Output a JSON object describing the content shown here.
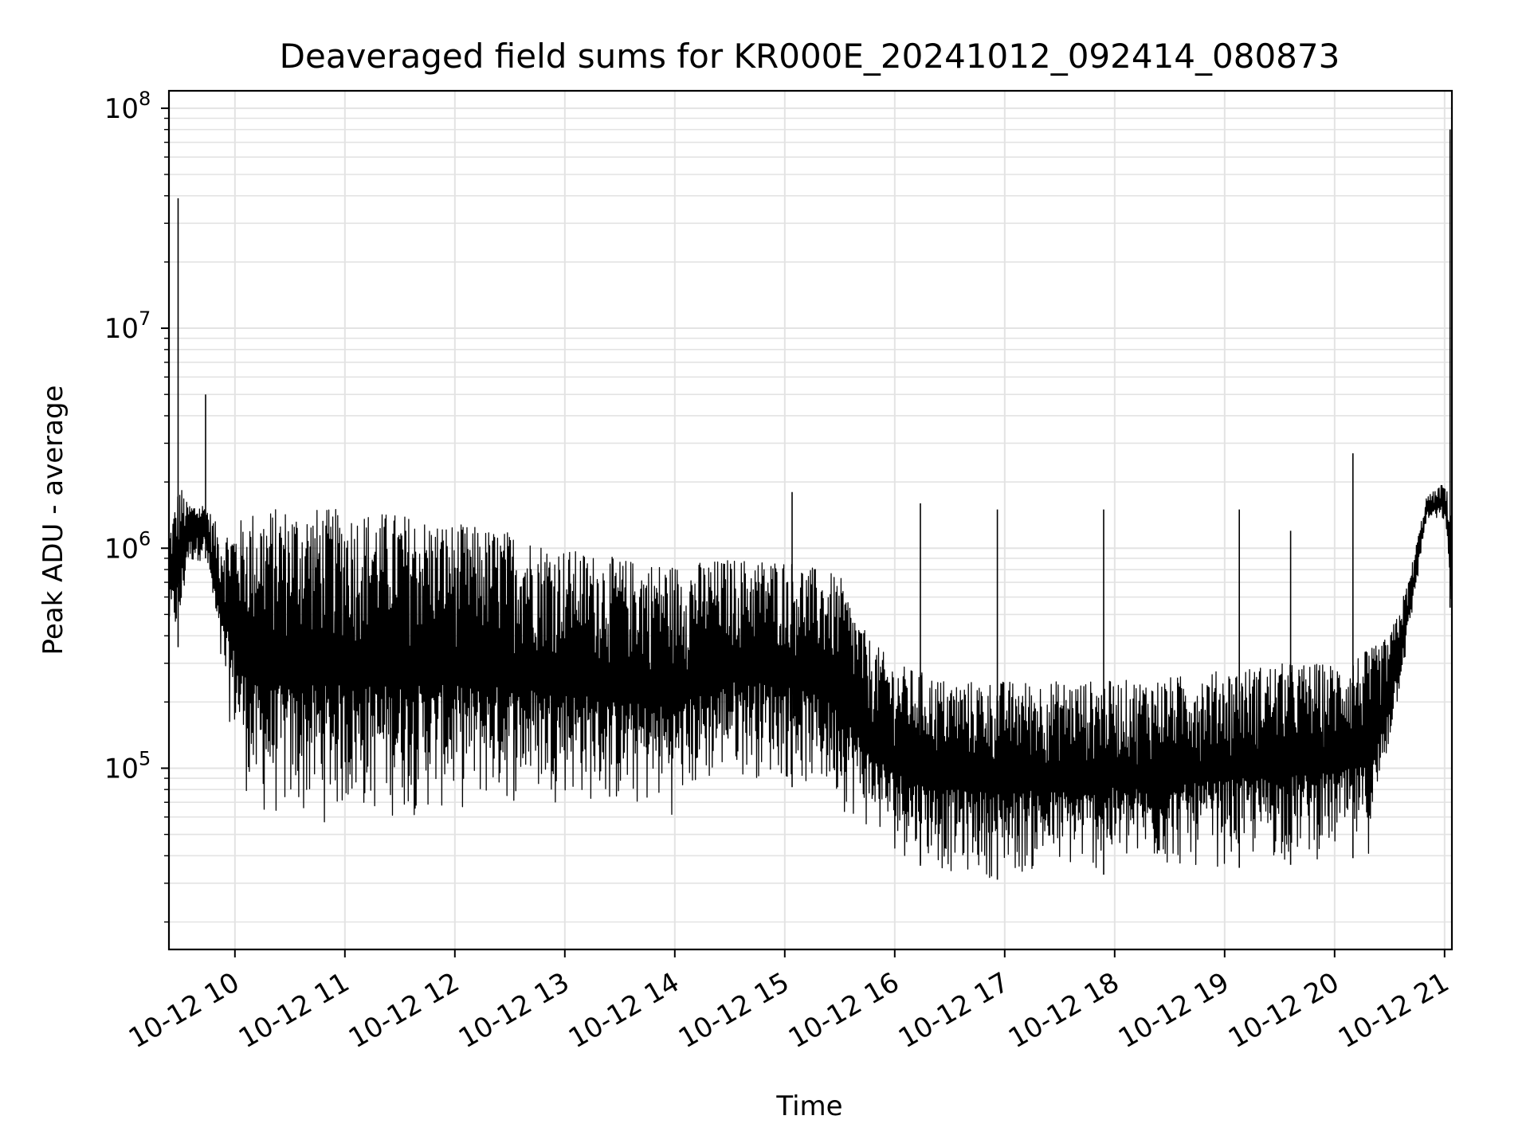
{
  "chart_data": {
    "type": "line",
    "title": "Deaveraged field sums for KR000E_20241012_092414_080873",
    "xlabel": "Time",
    "ylabel": "Peak ADU - average",
    "y_scale": "log",
    "ylim": [
      15000,
      120000000
    ],
    "xlim": [
      "2024-10-12 09:24",
      "2024-10-12 21:04"
    ],
    "grid": true,
    "line_color": "#000000",
    "grid_color": "#e3e3e3",
    "x_ticks": [
      {
        "value": "2024-10-12 10:00",
        "label": "10-12 10"
      },
      {
        "value": "2024-10-12 11:00",
        "label": "10-12 11"
      },
      {
        "value": "2024-10-12 12:00",
        "label": "10-12 12"
      },
      {
        "value": "2024-10-12 13:00",
        "label": "10-12 13"
      },
      {
        "value": "2024-10-12 14:00",
        "label": "10-12 14"
      },
      {
        "value": "2024-10-12 15:00",
        "label": "10-12 15"
      },
      {
        "value": "2024-10-12 16:00",
        "label": "10-12 16"
      },
      {
        "value": "2024-10-12 17:00",
        "label": "10-12 17"
      },
      {
        "value": "2024-10-12 18:00",
        "label": "10-12 18"
      },
      {
        "value": "2024-10-12 19:00",
        "label": "10-12 19"
      },
      {
        "value": "2024-10-12 20:00",
        "label": "10-12 20"
      },
      {
        "value": "2024-10-12 21:00",
        "label": "10-12 21"
      }
    ],
    "y_ticks": [
      {
        "value": 100000,
        "label_base": "10",
        "label_exp": "5"
      },
      {
        "value": 1000000,
        "label_base": "10",
        "label_exp": "6"
      },
      {
        "value": 10000000,
        "label_base": "10",
        "label_exp": "7"
      },
      {
        "value": 100000000,
        "label_base": "10",
        "label_exp": "8"
      }
    ],
    "series": [
      {
        "envelope": [
          {
            "t": "2024-10-12 09:24",
            "low": 380000,
            "high": 1200000
          },
          {
            "t": "2024-10-12 09:30",
            "low": 350000,
            "high": 2000000
          },
          {
            "t": "2024-10-12 09:34",
            "low": 800000,
            "high": 1600000
          },
          {
            "t": "2024-10-12 09:44",
            "low": 900000,
            "high": 1600000
          },
          {
            "t": "2024-10-12 09:52",
            "low": 250000,
            "high": 1200000
          },
          {
            "t": "2024-10-12 10:00",
            "low": 120000,
            "high": 1300000
          },
          {
            "t": "2024-10-12 10:10",
            "low": 55000,
            "high": 1500000
          },
          {
            "t": "2024-10-12 10:30",
            "low": 52000,
            "high": 1550000
          },
          {
            "t": "2024-10-12 11:00",
            "low": 55000,
            "high": 1500000
          },
          {
            "t": "2024-10-12 11:30",
            "low": 57000,
            "high": 1450000
          },
          {
            "t": "2024-10-12 12:00",
            "low": 60000,
            "high": 1300000
          },
          {
            "t": "2024-10-12 12:30",
            "low": 65000,
            "high": 1200000
          },
          {
            "t": "2024-10-12 13:00",
            "low": 70000,
            "high": 1000000
          },
          {
            "t": "2024-10-12 13:30",
            "low": 60000,
            "high": 900000
          },
          {
            "t": "2024-10-12 14:00",
            "low": 60000,
            "high": 850000
          },
          {
            "t": "2024-10-12 14:30",
            "low": 90000,
            "high": 900000
          },
          {
            "t": "2024-10-12 15:00",
            "low": 85000,
            "high": 900000
          },
          {
            "t": "2024-10-12 15:30",
            "low": 65000,
            "high": 750000
          },
          {
            "t": "2024-10-12 15:45",
            "low": 50000,
            "high": 400000
          },
          {
            "t": "2024-10-12 16:00",
            "low": 40000,
            "high": 300000
          },
          {
            "t": "2024-10-12 16:30",
            "low": 32000,
            "high": 250000
          },
          {
            "t": "2024-10-12 17:00",
            "low": 31000,
            "high": 250000
          },
          {
            "t": "2024-10-12 17:30",
            "low": 32000,
            "high": 250000
          },
          {
            "t": "2024-10-12 18:00",
            "low": 33000,
            "high": 250000
          },
          {
            "t": "2024-10-12 18:30",
            "low": 33000,
            "high": 260000
          },
          {
            "t": "2024-10-12 19:00",
            "low": 35000,
            "high": 280000
          },
          {
            "t": "2024-10-12 19:30",
            "low": 36000,
            "high": 300000
          },
          {
            "t": "2024-10-12 20:00",
            "low": 38000,
            "high": 300000
          },
          {
            "t": "2024-10-12 20:20",
            "low": 40000,
            "high": 350000
          },
          {
            "t": "2024-10-12 20:30",
            "low": 120000,
            "high": 400000
          },
          {
            "t": "2024-10-12 20:40",
            "low": 350000,
            "high": 700000
          },
          {
            "t": "2024-10-12 20:50",
            "low": 1300000,
            "high": 1700000
          },
          {
            "t": "2024-10-12 21:00",
            "low": 1300000,
            "high": 2000000
          },
          {
            "t": "2024-10-12 21:04",
            "low": 400000,
            "high": 1500000
          }
        ],
        "spikes": [
          {
            "t": "2024-10-12 09:29",
            "value": 39000000
          },
          {
            "t": "2024-10-12 09:44",
            "value": 5000000
          },
          {
            "t": "2024-10-12 15:04",
            "value": 1800000
          },
          {
            "t": "2024-10-12 16:14",
            "value": 1600000
          },
          {
            "t": "2024-10-12 16:56",
            "value": 1500000
          },
          {
            "t": "2024-10-12 17:54",
            "value": 1500000
          },
          {
            "t": "2024-10-12 19:08",
            "value": 1500000
          },
          {
            "t": "2024-10-12 19:36",
            "value": 1200000
          },
          {
            "t": "2024-10-12 20:10",
            "value": 2700000
          },
          {
            "t": "2024-10-12 21:03",
            "value": 80000000
          }
        ]
      }
    ]
  }
}
